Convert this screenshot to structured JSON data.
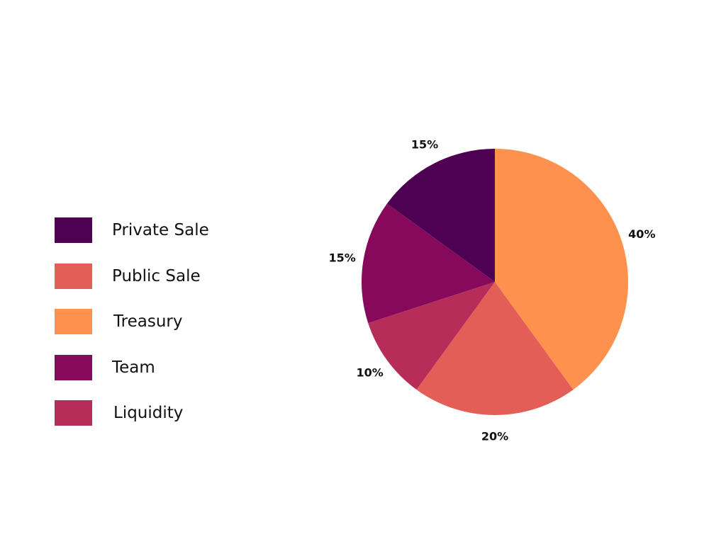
{
  "chart_data": {
    "type": "pie",
    "categories": [
      "Private Sale",
      "Public Sale",
      "Treasury",
      "Team",
      "Liquidity"
    ],
    "values": [
      15,
      20,
      40,
      15,
      10
    ],
    "value_labels": [
      "15%",
      "20%",
      "40%",
      "15%",
      "10%"
    ],
    "colors": [
      "#4e0052",
      "#e45e58",
      "#fd914d",
      "#86095c",
      "#b72d5a"
    ],
    "title": "",
    "legend_position": "left",
    "slice_order": [
      "Treasury",
      "Public Sale",
      "Liquidity",
      "Team",
      "Private Sale"
    ],
    "start_angle_deg": 0,
    "direction": "clockwise-from-top"
  }
}
